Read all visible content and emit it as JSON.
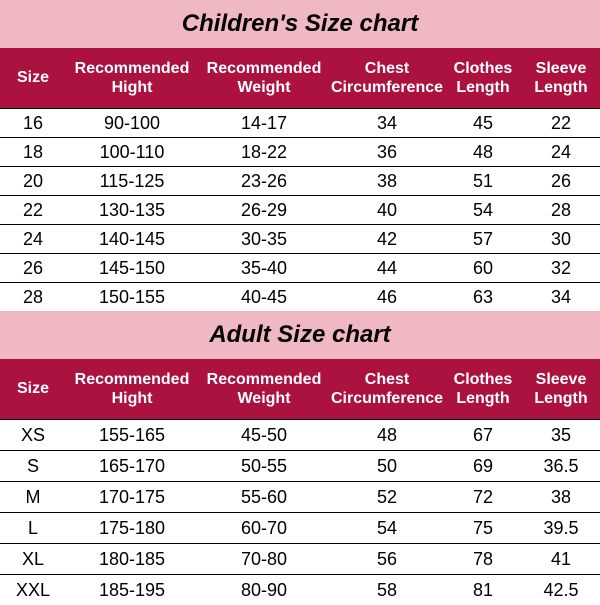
{
  "children": {
    "title": "Children's Size chart",
    "header_bg": "#ab1240",
    "title_bg": "#f0b8c2",
    "title_color": "#000000",
    "header_color": "#ffffff",
    "row_text_color": "#000000",
    "columns": [
      "Size",
      "Recommended Hight",
      "Recommended Weight",
      "Chest Circumference",
      "Clothes Length",
      "Sleeve Length"
    ],
    "rows": [
      [
        "16",
        "90-100",
        "14-17",
        "34",
        "45",
        "22"
      ],
      [
        "18",
        "100-110",
        "18-22",
        "36",
        "48",
        "24"
      ],
      [
        "20",
        "115-125",
        "23-26",
        "38",
        "51",
        "26"
      ],
      [
        "22",
        "130-135",
        "26-29",
        "40",
        "54",
        "28"
      ],
      [
        "24",
        "140-145",
        "30-35",
        "42",
        "57",
        "30"
      ],
      [
        "26",
        "145-150",
        "35-40",
        "44",
        "60",
        "32"
      ],
      [
        "28",
        "150-155",
        "40-45",
        "46",
        "63",
        "34"
      ]
    ]
  },
  "adult": {
    "title": "Adult Size chart",
    "header_bg": "#ab1240",
    "title_bg": "#f0b8c2",
    "title_color": "#000000",
    "header_color": "#ffffff",
    "row_text_color": "#000000",
    "columns": [
      "Size",
      "Recommended Hight",
      "Recommended Weight",
      "Chest Circumference",
      "Clothes Length",
      "Sleeve Length"
    ],
    "rows": [
      [
        "XS",
        "155-165",
        "45-50",
        "48",
        "67",
        "35"
      ],
      [
        "S",
        "165-170",
        "50-55",
        "50",
        "69",
        "36.5"
      ],
      [
        "M",
        "170-175",
        "55-60",
        "52",
        "72",
        "38"
      ],
      [
        "L",
        "175-180",
        "60-70",
        "54",
        "75",
        "39.5"
      ],
      [
        "XL",
        "180-185",
        "70-80",
        "56",
        "78",
        "41"
      ],
      [
        "XXL",
        "185-195",
        "80-90",
        "58",
        "81",
        "42.5"
      ]
    ]
  }
}
